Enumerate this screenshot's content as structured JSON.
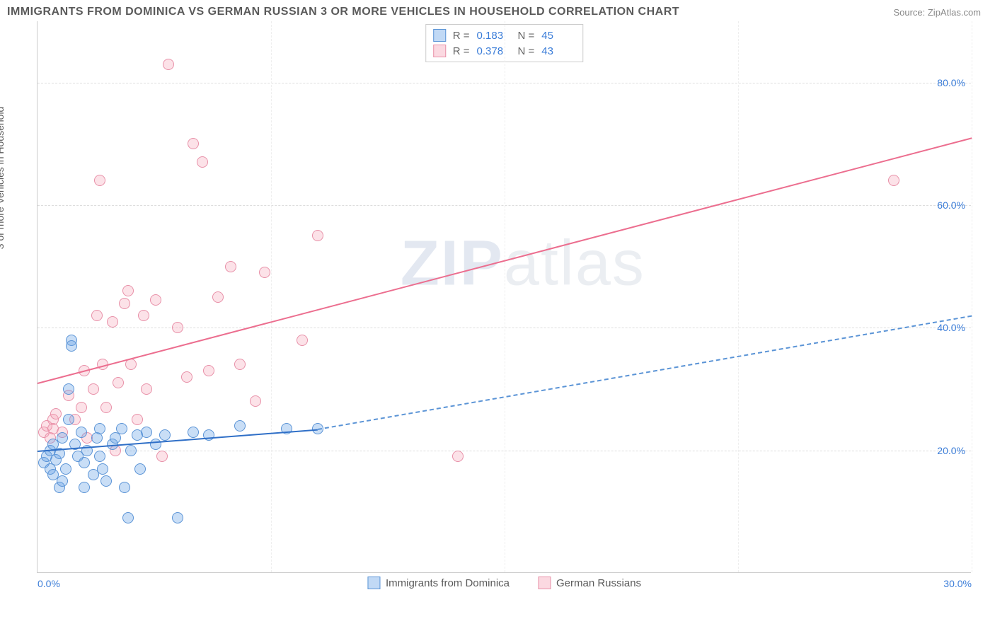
{
  "title": "IMMIGRANTS FROM DOMINICA VS GERMAN RUSSIAN 3 OR MORE VEHICLES IN HOUSEHOLD CORRELATION CHART",
  "source": "Source: ZipAtlas.com",
  "y_axis_label": "3 or more Vehicles in Household",
  "watermark_a": "ZIP",
  "watermark_b": "atlas",
  "chart": {
    "type": "scatter-with-trend",
    "xlim": [
      0,
      30
    ],
    "ylim": [
      0,
      90
    ],
    "x_ticks": [
      0,
      30
    ],
    "x_tick_labels": [
      "0.0%",
      "30.0%"
    ],
    "y_ticks": [
      20,
      40,
      60,
      80
    ],
    "y_tick_labels": [
      "20.0%",
      "40.0%",
      "60.0%",
      "80.0%"
    ],
    "v_grid_positions": [
      0,
      7.5,
      15,
      22.5,
      30
    ],
    "background_color": "#ffffff",
    "grid_color": "#dddddd",
    "marker_radius": 8,
    "series": [
      {
        "name": "Immigrants from Dominica",
        "color_fill": "rgba(100,160,230,0.35)",
        "color_stroke": "#5b94d6",
        "R": "0.183",
        "N": "45",
        "trend": {
          "x1": 0,
          "y1": 20,
          "x2": 9,
          "y2": 23.5,
          "solid": true,
          "color": "#2f6fc7"
        },
        "trend_ext": {
          "x1": 9,
          "y1": 23.5,
          "x2": 30,
          "y2": 42,
          "solid": false
        },
        "points": [
          [
            0.2,
            18
          ],
          [
            0.3,
            19
          ],
          [
            0.4,
            17
          ],
          [
            0.4,
            20
          ],
          [
            0.5,
            21
          ],
          [
            0.5,
            16
          ],
          [
            0.6,
            18.5
          ],
          [
            0.7,
            19.5
          ],
          [
            0.7,
            14
          ],
          [
            0.8,
            15
          ],
          [
            0.8,
            22
          ],
          [
            0.9,
            17
          ],
          [
            1.0,
            30
          ],
          [
            1.0,
            25
          ],
          [
            1.1,
            38
          ],
          [
            1.1,
            37
          ],
          [
            1.2,
            21
          ],
          [
            1.3,
            19
          ],
          [
            1.4,
            23
          ],
          [
            1.5,
            14
          ],
          [
            1.5,
            18
          ],
          [
            1.6,
            20
          ],
          [
            1.8,
            16
          ],
          [
            1.9,
            22
          ],
          [
            2.0,
            23.5
          ],
          [
            2.0,
            19
          ],
          [
            2.1,
            17
          ],
          [
            2.2,
            15
          ],
          [
            2.4,
            21
          ],
          [
            2.5,
            22
          ],
          [
            2.7,
            23.5
          ],
          [
            2.8,
            14
          ],
          [
            2.9,
            9
          ],
          [
            3.0,
            20
          ],
          [
            3.2,
            22.5
          ],
          [
            3.3,
            17
          ],
          [
            3.5,
            23
          ],
          [
            3.8,
            21
          ],
          [
            4.1,
            22.5
          ],
          [
            4.5,
            9
          ],
          [
            5.0,
            23
          ],
          [
            5.5,
            22.5
          ],
          [
            6.5,
            24
          ],
          [
            8.0,
            23.5
          ],
          [
            9.0,
            23.5
          ]
        ]
      },
      {
        "name": "German Russians",
        "color_fill": "rgba(244,160,180,0.3)",
        "color_stroke": "#e890a8",
        "R": "0.378",
        "N": "43",
        "trend": {
          "x1": 0,
          "y1": 31,
          "x2": 30,
          "y2": 71,
          "solid": true,
          "color": "#ec6e8f"
        },
        "points": [
          [
            0.2,
            23
          ],
          [
            0.3,
            24
          ],
          [
            0.4,
            22
          ],
          [
            0.5,
            25
          ],
          [
            0.5,
            23.5
          ],
          [
            0.6,
            26
          ],
          [
            0.8,
            23
          ],
          [
            1.0,
            29
          ],
          [
            1.2,
            25
          ],
          [
            1.4,
            27
          ],
          [
            1.5,
            33
          ],
          [
            1.6,
            22
          ],
          [
            1.8,
            30
          ],
          [
            1.9,
            42
          ],
          [
            2.0,
            64
          ],
          [
            2.1,
            34
          ],
          [
            2.2,
            27
          ],
          [
            2.4,
            41
          ],
          [
            2.5,
            20
          ],
          [
            2.6,
            31
          ],
          [
            2.8,
            44
          ],
          [
            2.9,
            46
          ],
          [
            3.0,
            34
          ],
          [
            3.2,
            25
          ],
          [
            3.4,
            42
          ],
          [
            3.5,
            30
          ],
          [
            3.8,
            44.5
          ],
          [
            4.0,
            19
          ],
          [
            4.2,
            83
          ],
          [
            4.5,
            40
          ],
          [
            4.8,
            32
          ],
          [
            5.0,
            70
          ],
          [
            5.3,
            67
          ],
          [
            5.5,
            33
          ],
          [
            5.8,
            45
          ],
          [
            6.2,
            50
          ],
          [
            6.5,
            34
          ],
          [
            7.0,
            28
          ],
          [
            7.3,
            49
          ],
          [
            8.5,
            38
          ],
          [
            9.0,
            55
          ],
          [
            13.5,
            19
          ],
          [
            27.5,
            64
          ]
        ]
      }
    ]
  },
  "legend": {
    "items": [
      "Immigrants from Dominica",
      "German Russians"
    ]
  },
  "stats_labels": {
    "r": "R  =",
    "n": "N  ="
  }
}
